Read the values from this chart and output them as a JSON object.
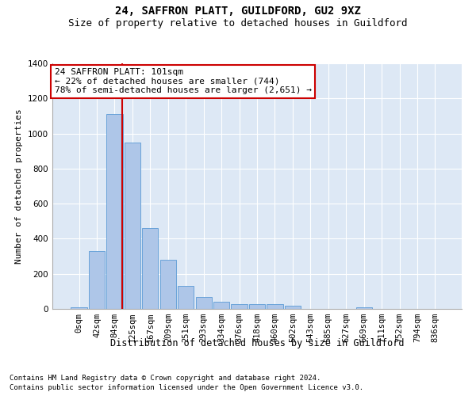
{
  "title1": "24, SAFFRON PLATT, GUILDFORD, GU2 9XZ",
  "title2": "Size of property relative to detached houses in Guildford",
  "xlabel": "Distribution of detached houses by size in Guildford",
  "ylabel": "Number of detached properties",
  "categories": [
    "0sqm",
    "42sqm",
    "84sqm",
    "125sqm",
    "167sqm",
    "209sqm",
    "251sqm",
    "293sqm",
    "334sqm",
    "376sqm",
    "418sqm",
    "460sqm",
    "502sqm",
    "543sqm",
    "585sqm",
    "627sqm",
    "669sqm",
    "711sqm",
    "752sqm",
    "794sqm",
    "836sqm"
  ],
  "bar_heights": [
    10,
    330,
    1110,
    950,
    460,
    280,
    130,
    70,
    40,
    25,
    25,
    25,
    18,
    0,
    0,
    0,
    10,
    0,
    0,
    0,
    0
  ],
  "bar_color": "#aec6e8",
  "bar_edge_color": "#5b9bd5",
  "vline_x_index": 2.42,
  "vline_color": "#cc0000",
  "annotation_text": "24 SAFFRON PLATT: 101sqm\n← 22% of detached houses are smaller (744)\n78% of semi-detached houses are larger (2,651) →",
  "annotation_box_color": "#ffffff",
  "annotation_box_edge": "#cc0000",
  "ylim": [
    0,
    1400
  ],
  "yticks": [
    0,
    200,
    400,
    600,
    800,
    1000,
    1200,
    1400
  ],
  "bg_color": "#dde8f5",
  "footer1": "Contains HM Land Registry data © Crown copyright and database right 2024.",
  "footer2": "Contains public sector information licensed under the Open Government Licence v3.0.",
  "title1_fontsize": 10,
  "title2_fontsize": 9,
  "xlabel_fontsize": 8.5,
  "ylabel_fontsize": 8,
  "tick_fontsize": 7.5,
  "annotation_fontsize": 8,
  "footer_fontsize": 6.5
}
